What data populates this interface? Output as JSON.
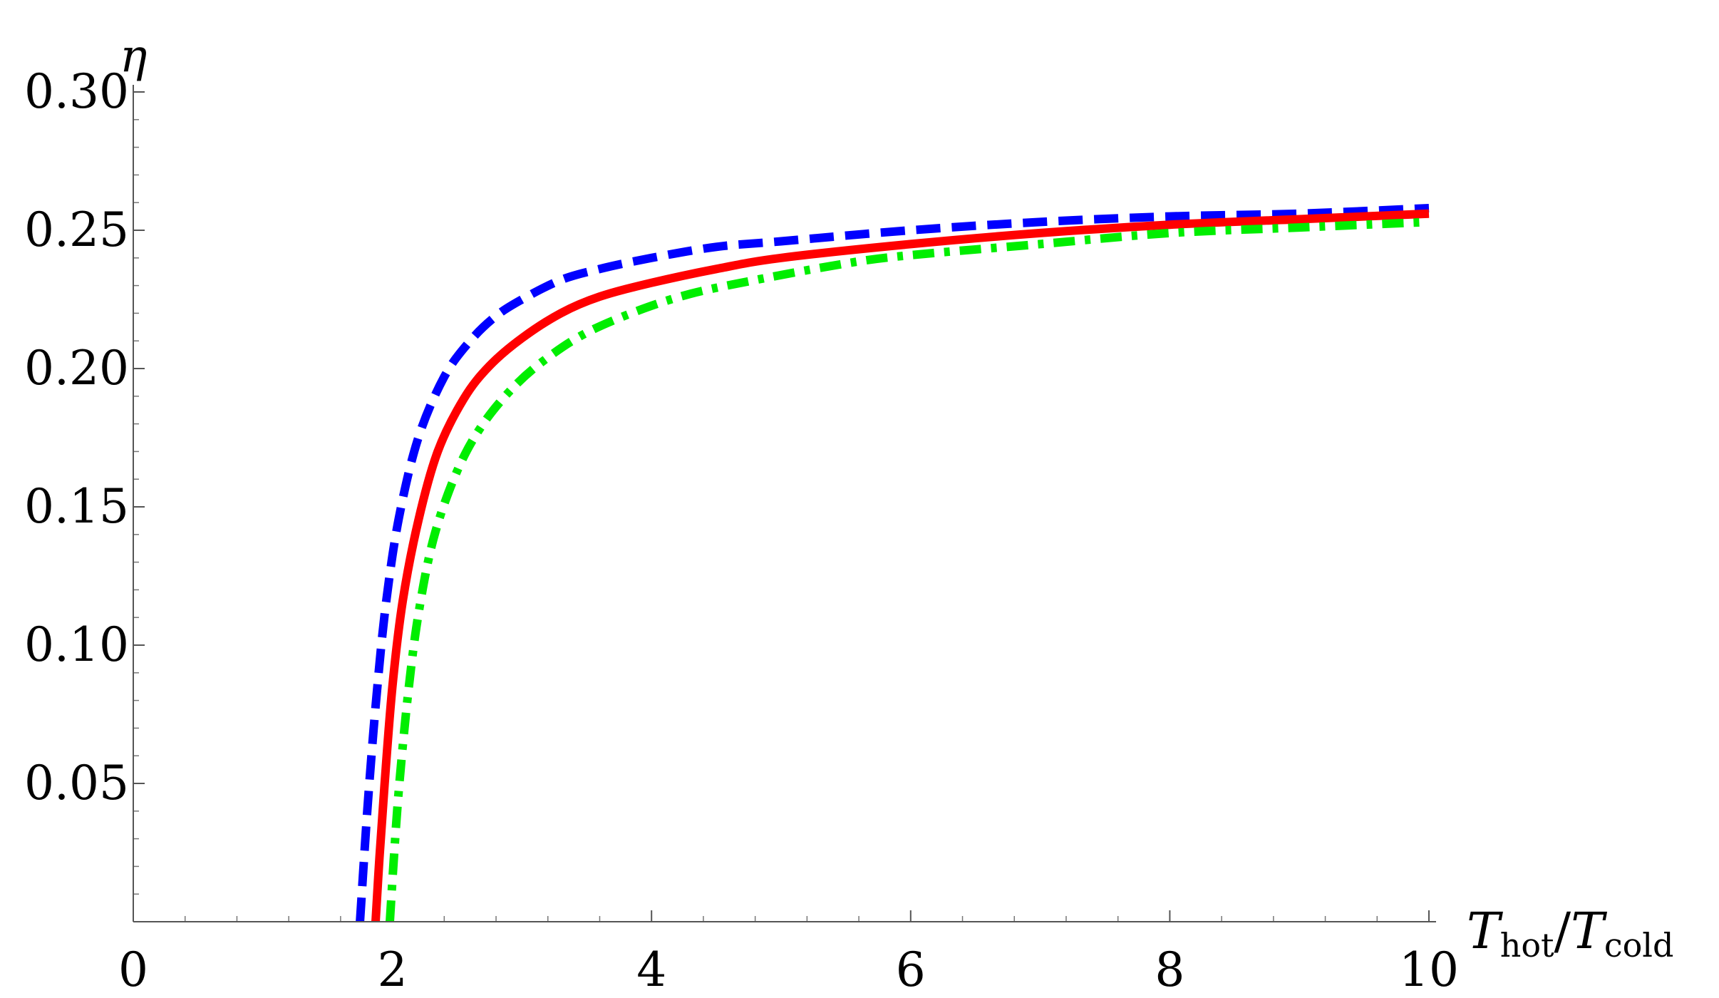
{
  "chart_data": {
    "type": "line",
    "title": "",
    "xlabel": {
      "main": "T",
      "sub1": "hot",
      "slash": "/",
      "main2": "T",
      "sub2": "cold"
    },
    "ylabel": "η",
    "xlim": [
      0,
      10
    ],
    "ylim": [
      0,
      0.3
    ],
    "x_ticks": [
      0,
      2,
      4,
      6,
      8,
      10
    ],
    "x_tick_labels": [
      "0",
      "2",
      "4",
      "6",
      "8",
      "10"
    ],
    "y_ticks": [
      0.05,
      0.1,
      0.15,
      0.2,
      0.25,
      0.3
    ],
    "y_tick_labels": [
      "0.05",
      "0.10",
      "0.15",
      "0.20",
      "0.25",
      "0.30"
    ],
    "grid": false,
    "series": [
      {
        "color": "#0000ff",
        "style": "dashed",
        "x": [
          1.75,
          1.78,
          1.82,
          1.88,
          1.95,
          2.05,
          2.2,
          2.4,
          2.6,
          2.8,
          3.0,
          3.3,
          3.6,
          4.0,
          4.5,
          5.0,
          6.0,
          7.0,
          8.0,
          9.0,
          10.0
        ],
        "y": [
          0.0,
          0.022,
          0.049,
          0.083,
          0.115,
          0.146,
          0.175,
          0.197,
          0.21,
          0.219,
          0.225,
          0.232,
          0.236,
          0.24,
          0.244,
          0.246,
          0.25,
          0.253,
          0.255,
          0.256,
          0.258
        ]
      },
      {
        "color": "#ff0000",
        "style": "solid",
        "x": [
          1.87,
          1.9,
          1.94,
          2.0,
          2.08,
          2.2,
          2.35,
          2.55,
          2.75,
          3.0,
          3.3,
          3.6,
          4.0,
          4.5,
          5.0,
          6.0,
          7.0,
          8.0,
          9.0,
          10.0
        ],
        "y": [
          0.0,
          0.023,
          0.05,
          0.085,
          0.116,
          0.145,
          0.17,
          0.189,
          0.201,
          0.211,
          0.22,
          0.226,
          0.231,
          0.236,
          0.24,
          0.245,
          0.249,
          0.252,
          0.254,
          0.256
        ]
      },
      {
        "color": "#00ee00",
        "style": "dashdot",
        "x": [
          1.98,
          2.01,
          2.05,
          2.12,
          2.2,
          2.32,
          2.5,
          2.7,
          2.95,
          3.2,
          3.5,
          3.9,
          4.3,
          4.8,
          5.5,
          6.0,
          7.0,
          8.0,
          9.0,
          10.0
        ],
        "y": [
          0.0,
          0.022,
          0.048,
          0.082,
          0.111,
          0.139,
          0.163,
          0.18,
          0.194,
          0.204,
          0.213,
          0.221,
          0.227,
          0.232,
          0.238,
          0.241,
          0.245,
          0.249,
          0.251,
          0.253
        ]
      }
    ]
  }
}
